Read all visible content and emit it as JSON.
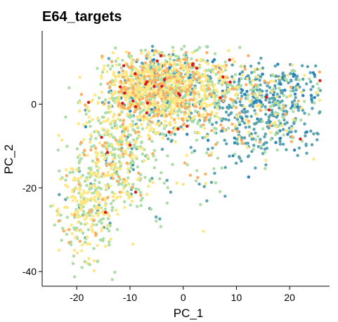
{
  "chart_data": {
    "type": "scatter",
    "title": "E64_targets",
    "xlabel": "PC_1",
    "ylabel": "PC_2",
    "xlim": [
      -26.5,
      27.5
    ],
    "ylim": [
      -43.5,
      17.5
    ],
    "xticks": [
      -20,
      -10,
      0,
      10,
      20
    ],
    "yticks": [
      -40,
      -20,
      0
    ],
    "xtick_labels": [
      "-20",
      "-10",
      "0",
      "10",
      "20"
    ],
    "ytick_labels": [
      "-40",
      "-20",
      "0"
    ],
    "grid": false,
    "legend": "none",
    "color_scale": [
      "#2b83ba",
      "#5aa3b0",
      "#abdda4",
      "#ffe680",
      "#fdae61",
      "#d7191c"
    ],
    "seed": 20240501,
    "clusters": [
      {
        "n": 1050,
        "cx": -5,
        "cy": 2.5,
        "sx": 5,
        "sy": 4.5,
        "mix": [
          0.03,
          0.1,
          0.26,
          0.45,
          0.14,
          0.02
        ]
      },
      {
        "n": 260,
        "cx": -1,
        "cy": 7,
        "sx": 6,
        "sy": 3,
        "mix": [
          0.05,
          0.15,
          0.32,
          0.33,
          0.13,
          0.02
        ]
      },
      {
        "n": 300,
        "cx": 17,
        "cy": 2,
        "sx": 4.5,
        "sy": 3.5,
        "mix": [
          0.1,
          0.6,
          0.16,
          0.08,
          0.05,
          0.01
        ]
      },
      {
        "n": 160,
        "cx": 7,
        "cy": 2,
        "sx": 4,
        "sy": 4,
        "mix": [
          0.05,
          0.33,
          0.28,
          0.2,
          0.12,
          0.02
        ]
      },
      {
        "n": 210,
        "cx": 14,
        "cy": -6,
        "sx": 7,
        "sy": 3.5,
        "mix": [
          0.1,
          0.55,
          0.15,
          0.12,
          0.07,
          0.01
        ]
      },
      {
        "n": 340,
        "cx": -13,
        "cy": -12,
        "sx": 3.5,
        "sy": 7,
        "mix": [
          0.01,
          0.04,
          0.47,
          0.4,
          0.07,
          0.01
        ]
      },
      {
        "n": 280,
        "cx": -18,
        "cy": -25,
        "sx": 2.8,
        "sy": 6,
        "mix": [
          0.01,
          0.04,
          0.45,
          0.43,
          0.06,
          0.01
        ]
      },
      {
        "n": 70,
        "cx": -8,
        "cy": -15,
        "sx": 5,
        "sy": 7,
        "mix": [
          0.02,
          0.18,
          0.34,
          0.34,
          0.11,
          0.01
        ]
      },
      {
        "n": 60,
        "cx": 5,
        "cy": -12,
        "sx": 6,
        "sy": 6,
        "mix": [
          0.03,
          0.3,
          0.3,
          0.25,
          0.11,
          0.01
        ]
      }
    ]
  }
}
